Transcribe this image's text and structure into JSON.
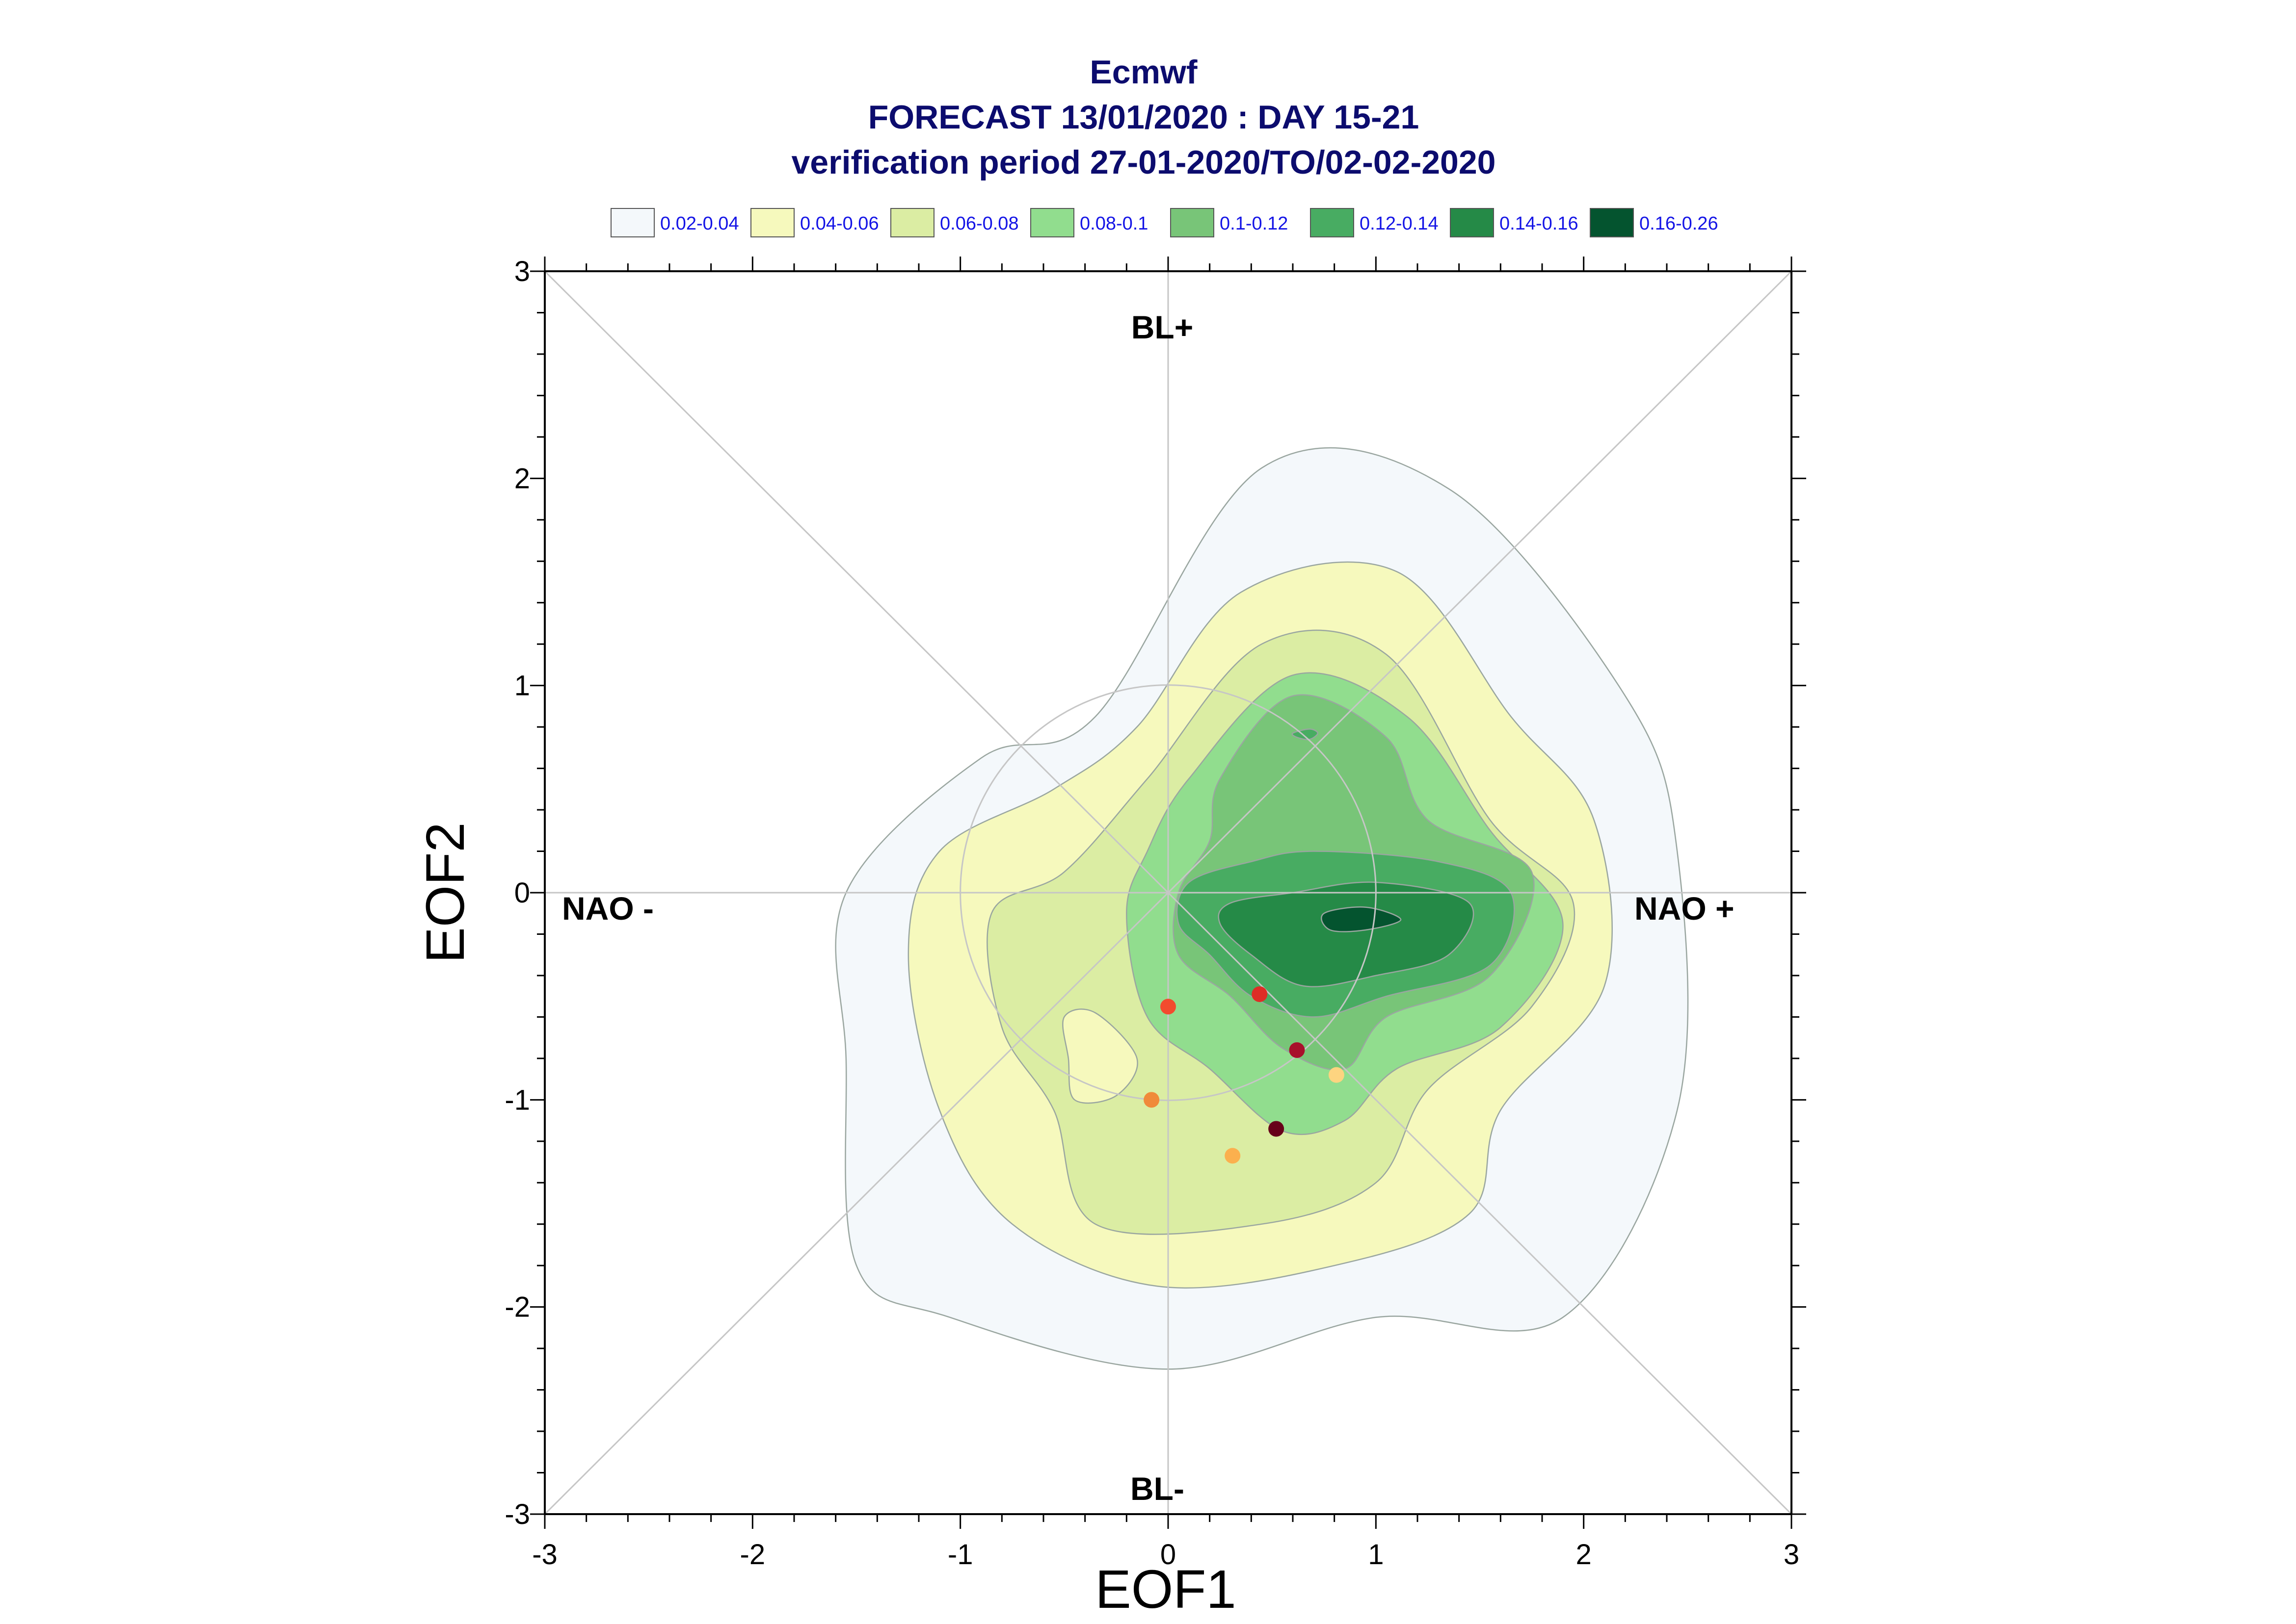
{
  "chart_data": {
    "type": "contour",
    "title": [
      "Ecmwf",
      "FORECAST 13/01/2020 : DAY 15-21",
      "verification period 27-01-2020/TO/02-02-2020"
    ],
    "xlabel": "EOF1",
    "ylabel": "EOF2",
    "xlim": [
      -3,
      3
    ],
    "ylim": [
      -3,
      3
    ],
    "x_ticks": [
      "-3",
      "-2",
      "-1",
      "0",
      "1",
      "2",
      "3"
    ],
    "y_ticks": [
      "3",
      "2",
      "1",
      "0",
      "-1",
      "-2",
      "-3"
    ],
    "regime_labels": {
      "top": "BL+",
      "bottom": "BL-",
      "left": "NAO -",
      "right": "NAO +"
    },
    "unit_circle_radius": 1,
    "legend": [
      {
        "label": "0.02-0.04",
        "color": "#f4f8fb"
      },
      {
        "label": "0.04-0.06",
        "color": "#f6f9bd"
      },
      {
        "label": "0.06-0.08",
        "color": "#dbeda3"
      },
      {
        "label": "0.08-0.1",
        "color": "#91dd8e"
      },
      {
        "label": "0.1-0.12",
        "color": "#78c578"
      },
      {
        "label": "0.12-0.14",
        "color": "#48ac62"
      },
      {
        "label": "0.14-0.16",
        "color": "#258a47"
      },
      {
        "label": "0.16-0.26",
        "color": "#04542f"
      }
    ],
    "contours": [
      {
        "level": "0.02-0.04",
        "color": "#f4f8fb",
        "points": [
          [
            -0.35,
            0.85
          ],
          [
            0.45,
            2.05
          ],
          [
            1.35,
            1.95
          ],
          [
            2.2,
            0.95
          ],
          [
            2.45,
            0.2
          ],
          [
            2.45,
            -1.05
          ],
          [
            1.9,
            -2.05
          ],
          [
            1.0,
            -2.05
          ],
          [
            0.0,
            -2.3
          ],
          [
            -1.05,
            -2.05
          ],
          [
            -1.5,
            -1.8
          ],
          [
            -1.55,
            -0.8
          ],
          [
            -1.55,
            0.0
          ],
          [
            -0.9,
            0.65
          ]
        ]
      },
      {
        "level": "0.04-0.06",
        "color": "#f6f9bd",
        "points": [
          [
            -0.15,
            0.8
          ],
          [
            0.35,
            1.45
          ],
          [
            1.1,
            1.55
          ],
          [
            1.65,
            0.85
          ],
          [
            2.05,
            0.35
          ],
          [
            2.1,
            -0.45
          ],
          [
            1.6,
            -1.05
          ],
          [
            1.45,
            -1.55
          ],
          [
            0.8,
            -1.8
          ],
          [
            -0.05,
            -1.9
          ],
          [
            -0.75,
            -1.6
          ],
          [
            -1.1,
            -1.05
          ],
          [
            -1.25,
            -0.3
          ],
          [
            -1.1,
            0.2
          ],
          [
            -0.55,
            0.5
          ]
        ]
      },
      {
        "level": "0.06-0.08",
        "color": "#dbeda3",
        "points": [
          [
            -0.1,
            0.55
          ],
          [
            0.45,
            1.2
          ],
          [
            1.05,
            1.15
          ],
          [
            1.55,
            0.35
          ],
          [
            1.95,
            -0.05
          ],
          [
            1.75,
            -0.55
          ],
          [
            1.25,
            -0.95
          ],
          [
            1.0,
            -1.4
          ],
          [
            0.45,
            -1.6
          ],
          [
            -0.35,
            -1.6
          ],
          [
            -0.55,
            -1.05
          ],
          [
            -0.8,
            -0.65
          ],
          [
            -0.85,
            -0.1
          ],
          [
            -0.5,
            0.1
          ]
        ]
      },
      {
        "level": "0.08-0.1",
        "color": "#91dd8e",
        "points": [
          [
            0.1,
            0.55
          ],
          [
            0.6,
            1.05
          ],
          [
            1.15,
            0.85
          ],
          [
            1.55,
            0.3
          ],
          [
            1.9,
            -0.15
          ],
          [
            1.6,
            -0.65
          ],
          [
            1.1,
            -0.85
          ],
          [
            0.85,
            -1.1
          ],
          [
            0.55,
            -1.15
          ],
          [
            0.2,
            -0.85
          ],
          [
            -0.1,
            -0.6
          ],
          [
            -0.2,
            -0.1
          ],
          [
            -0.1,
            0.2
          ]
        ]
      },
      {
        "level": "0.1-0.12",
        "color": "#78c578",
        "points": [
          [
            0.25,
            0.55
          ],
          [
            0.6,
            0.95
          ],
          [
            1.05,
            0.75
          ],
          [
            1.25,
            0.35
          ],
          [
            1.75,
            0.1
          ],
          [
            1.55,
            -0.4
          ],
          [
            1.05,
            -0.6
          ],
          [
            0.85,
            -0.85
          ],
          [
            0.55,
            -0.75
          ],
          [
            0.3,
            -0.5
          ],
          [
            0.05,
            -0.3
          ],
          [
            0.05,
            0.0
          ],
          [
            0.2,
            0.25
          ]
        ]
      },
      {
        "level": "0.12-0.14",
        "color": "#48ac62",
        "points": [
          [
            0.1,
            0.05
          ],
          [
            0.4,
            0.15
          ],
          [
            0.7,
            0.2
          ],
          [
            1.3,
            0.15
          ],
          [
            1.65,
            0.0
          ],
          [
            1.55,
            -0.35
          ],
          [
            1.05,
            -0.5
          ],
          [
            0.7,
            -0.6
          ],
          [
            0.4,
            -0.5
          ],
          [
            0.2,
            -0.3
          ],
          [
            0.05,
            -0.15
          ]
        ]
      },
      {
        "level": "0.14-0.16",
        "color": "#258a47",
        "points": [
          [
            0.3,
            -0.05
          ],
          [
            0.6,
            0.0
          ],
          [
            1.0,
            0.05
          ],
          [
            1.45,
            -0.05
          ],
          [
            1.35,
            -0.3
          ],
          [
            1.0,
            -0.4
          ],
          [
            0.65,
            -0.45
          ],
          [
            0.4,
            -0.3
          ],
          [
            0.25,
            -0.15
          ]
        ]
      },
      {
        "level": "0.16-0.26",
        "color": "#04542f",
        "points": [
          [
            0.75,
            -0.1
          ],
          [
            0.95,
            -0.07
          ],
          [
            1.12,
            -0.13
          ],
          [
            0.95,
            -0.18
          ],
          [
            0.78,
            -0.18
          ]
        ]
      }
    ],
    "inner_features": [
      {
        "color": "#f6f9bd",
        "points": [
          [
            -0.5,
            -0.6
          ],
          [
            -0.35,
            -0.58
          ],
          [
            -0.15,
            -0.8
          ],
          [
            -0.25,
            -0.98
          ],
          [
            -0.45,
            -1.0
          ],
          [
            -0.48,
            -0.8
          ]
        ]
      },
      {
        "color": "#48ac62",
        "points": [
          [
            0.6,
            0.77
          ],
          [
            0.68,
            0.79
          ],
          [
            0.72,
            0.77
          ],
          [
            0.68,
            0.74
          ],
          [
            0.62,
            0.75
          ]
        ]
      }
    ],
    "points": [
      {
        "x": 0.0,
        "y": -0.55,
        "color": "#f24b2e"
      },
      {
        "x": 0.44,
        "y": -0.49,
        "color": "#de2d26"
      },
      {
        "x": 0.62,
        "y": -0.76,
        "color": "#a8102b"
      },
      {
        "x": 0.81,
        "y": -0.88,
        "color": "#fdd480"
      },
      {
        "x": -0.08,
        "y": -1.0,
        "color": "#f08a3a"
      },
      {
        "x": 0.52,
        "y": -1.14,
        "color": "#67001a"
      },
      {
        "x": 0.31,
        "y": -1.27,
        "color": "#fbb04e"
      }
    ]
  }
}
